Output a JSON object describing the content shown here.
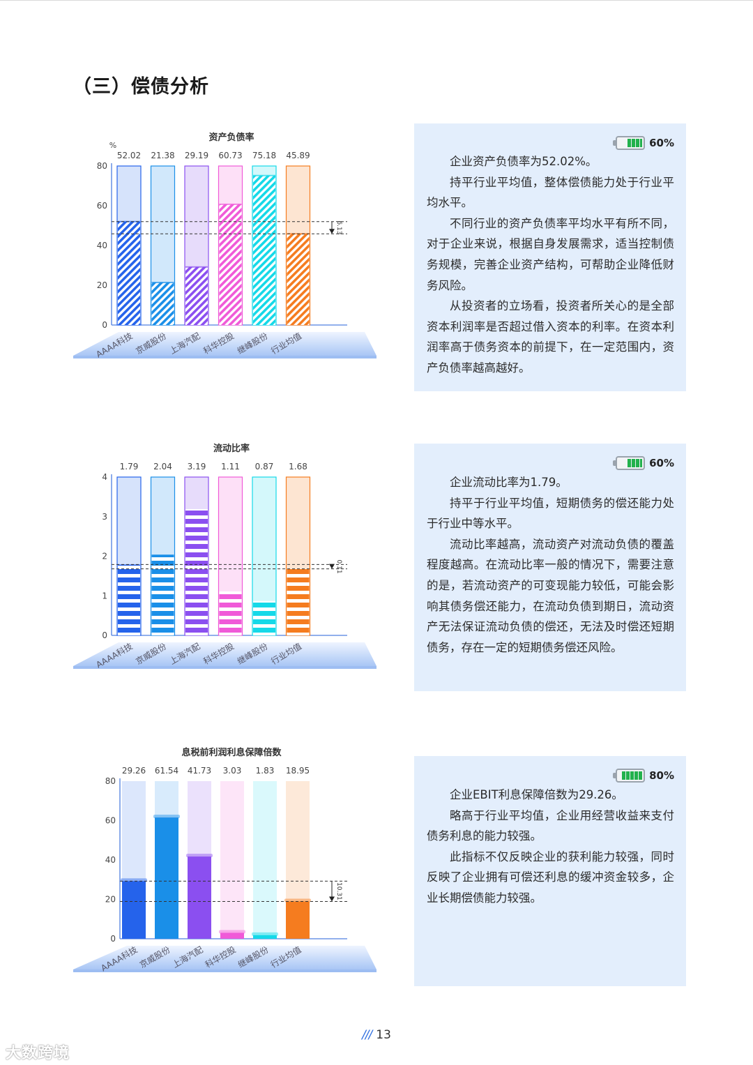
{
  "section": {
    "title": "（三）偿债分析"
  },
  "page": {
    "slashes": "///",
    "number": "13"
  },
  "watermark": {
    "text": "大数跨境"
  },
  "charts": [
    {
      "chart_data": {
        "type": "bar",
        "title": "资产负债率",
        "unit": "%",
        "categories": [
          "AAAA科技",
          "京威股份",
          "上海汽配",
          "科华控股",
          "继峰股份",
          "行业均值"
        ],
        "values": [
          52.02,
          21.38,
          29.19,
          60.73,
          75.18,
          45.89
        ],
        "value_labels": [
          "52.02",
          "21.38",
          "29.19",
          "60.73",
          "75.18",
          "45.89"
        ],
        "ylim": [
          0,
          80
        ],
        "yticks": [
          0,
          20,
          40,
          60,
          80
        ],
        "ytick_labels": [
          "0",
          "20",
          "40",
          "60",
          "80"
        ],
        "diff_label": "6.13",
        "style": "hatched"
      }
    },
    {
      "chart_data": {
        "type": "bar",
        "title": "流动比率",
        "categories": [
          "AAAA科技",
          "京威股份",
          "上海汽配",
          "科华控股",
          "继峰股份",
          "行业均值"
        ],
        "values": [
          1.79,
          2.04,
          3.19,
          1.11,
          0.87,
          1.68
        ],
        "value_labels": [
          "1.79",
          "2.04",
          "3.19",
          "1.11",
          "0.87",
          "1.68"
        ],
        "ylim": [
          0,
          4
        ],
        "yticks": [
          0,
          1,
          2,
          3,
          4
        ],
        "ytick_labels": [
          "0",
          "1",
          "2",
          "3",
          "4"
        ],
        "diff_label": "0.11",
        "style": "striped"
      }
    },
    {
      "chart_data": {
        "type": "bar",
        "title": "息税前利润利息保障倍数",
        "categories": [
          "AAAA科技",
          "京威股份",
          "上海汽配",
          "科华控股",
          "继峰股份",
          "行业均值"
        ],
        "values": [
          29.26,
          61.54,
          41.73,
          3.03,
          1.83,
          18.95
        ],
        "value_labels": [
          "29.26",
          "61.54",
          "41.73",
          "3.03",
          "1.83",
          "18.95"
        ],
        "ylim": [
          0,
          80
        ],
        "yticks": [
          0,
          20,
          40,
          60,
          80
        ],
        "ytick_labels": [
          "0",
          "20",
          "40",
          "60",
          "80"
        ],
        "diff_label": "10.31",
        "style": "solid"
      }
    }
  ],
  "series_colors": [
    "#2563eb",
    "#1a8fe8",
    "#8b4ff0",
    "#f05ad8",
    "#15d9e8",
    "#f57c1f"
  ],
  "series_light_colors": [
    "#d6e3fb",
    "#d1e8fb",
    "#e7dcfb",
    "#fde0f7",
    "#d4f8fb",
    "#fde5d2"
  ],
  "panels": [
    {
      "rating": "60%",
      "rating_fraction": 0.6,
      "paragraphs": [
        "企业资产负债率为52.02%。",
        "持平行业平均值，整体偿债能力处于行业平均水平。",
        "不同行业的资产负债率平均水平有所不同，对于企业来说，根据自身发展需求，适当控制债务规模，完善企业资产结构，可帮助企业降低财务风险。",
        "从投资者的立场看，投资者所关心的是全部资本利润率是否超过借入资本的利率。在资本利润率高于债务资本的前提下，在一定范围内，资产负债率越高越好。"
      ]
    },
    {
      "rating": "60%",
      "rating_fraction": 0.6,
      "paragraphs": [
        "企业流动比率为1.79。",
        "持平于行业平均值，短期债务的偿还能力处于行业中等水平。",
        "流动比率越高，流动资产对流动负债的覆盖程度越高。在流动比率一般的情况下，需要注意的是，若流动资产的可变现能力较低，可能会影响其债务偿还能力，在流动负债到期日，流动资产无法保证流动负债的偿还，无法及时偿还短期债务，存在一定的短期债务偿还风险。"
      ]
    },
    {
      "rating": "80%",
      "rating_fraction": 0.8,
      "paragraphs": [
        "企业EBIT利息保障倍数为29.26。",
        "略高于行业平均值，企业用经营收益来支付债务利息的能力较强。",
        "此指标不仅反映企业的获利能力较强，同时反映了企业拥有可偿还利息的缓冲资金较多，企业长期偿债能力较强。"
      ]
    }
  ]
}
